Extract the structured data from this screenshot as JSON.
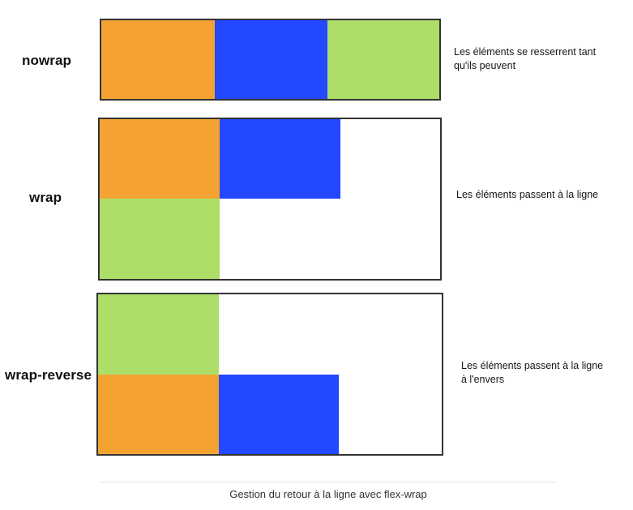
{
  "colors": {
    "item1": "#f4a332",
    "item2": "#2348ff",
    "item3": "#acde68"
  },
  "rows": {
    "nowrap": {
      "label": "nowrap",
      "description": [
        "Les éléments se resserrent tant",
        "qu'ils peuvent"
      ]
    },
    "wrap": {
      "label": "wrap",
      "description": [
        "Les éléments passent à la ligne"
      ]
    },
    "wrap_reverse": {
      "label": "wrap-reverse",
      "description": [
        "Les éléments passent à la ligne",
        "à l'envers"
      ]
    }
  },
  "caption": "Gestion du retour à la ligne avec flex-wrap"
}
